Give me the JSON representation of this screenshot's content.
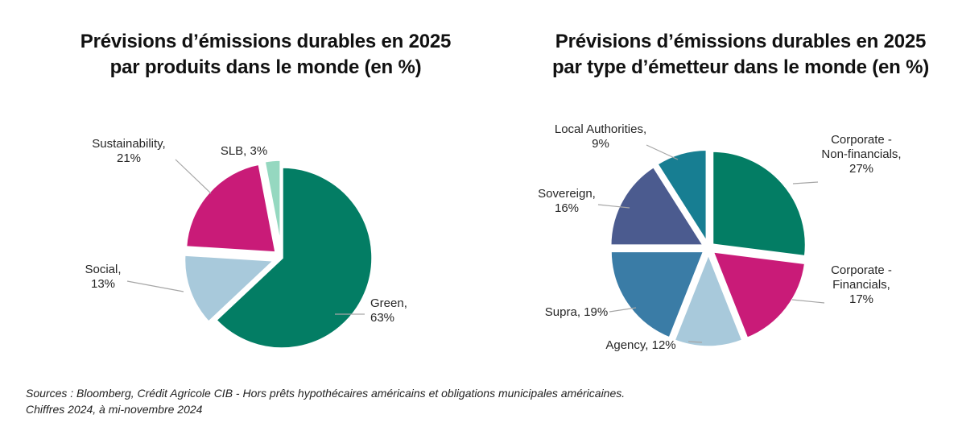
{
  "chart_data": [
    {
      "type": "pie",
      "title": [
        "Prévisions d’émissions durables en  2025",
        "par produits dans le monde (en  %)"
      ],
      "slices": [
        {
          "name": "Green",
          "value": 63,
          "label": [
            "Green,",
            "63%"
          ],
          "color": "#037d64"
        },
        {
          "name": "Social",
          "value": 13,
          "label": [
            "Social,",
            "13%"
          ],
          "color": "#a8c9db"
        },
        {
          "name": "Sustainability",
          "value": 21,
          "label": [
            "Sustainability,",
            "21%"
          ],
          "color": "#c91b78"
        },
        {
          "name": "SLB",
          "value": 3,
          "label": [
            "SLB, 3%"
          ],
          "color": "#95d8c0"
        }
      ]
    },
    {
      "type": "pie",
      "title": [
        "Prévisions d’émissions durables en  2025",
        "par type d’émetteur dans le monde (en  %)"
      ],
      "slices": [
        {
          "name": "Corporate - Non-financials",
          "value": 27,
          "label": [
            "Corporate -",
            "Non-financials,",
            "27%"
          ],
          "color": "#037d64"
        },
        {
          "name": "Corporate - Financials",
          "value": 17,
          "label": [
            "Corporate -",
            "Financials,",
            "17%"
          ],
          "color": "#c91b78"
        },
        {
          "name": "Agency",
          "value": 12,
          "label": [
            "Agency, 12%"
          ],
          "color": "#a8c9db"
        },
        {
          "name": "Supra",
          "value": 19,
          "label": [
            "Supra, 19%"
          ],
          "color": "#3a7ca6"
        },
        {
          "name": "Sovereign",
          "value": 16,
          "label": [
            "Sovereign,",
            "16%"
          ],
          "color": "#4b5b8f"
        },
        {
          "name": "Local Authorities",
          "value": 9,
          "label": [
            "Local Authorities,",
            "9%"
          ],
          "color": "#177e92"
        }
      ]
    }
  ],
  "footer": {
    "sources": "Sources : Bloomberg, Crédit Agricole CIB - Hors prêts hypothécaires américains et obligations municipales américaines.",
    "figures": "Chiffres 2024, à mi-novembre 2024"
  }
}
